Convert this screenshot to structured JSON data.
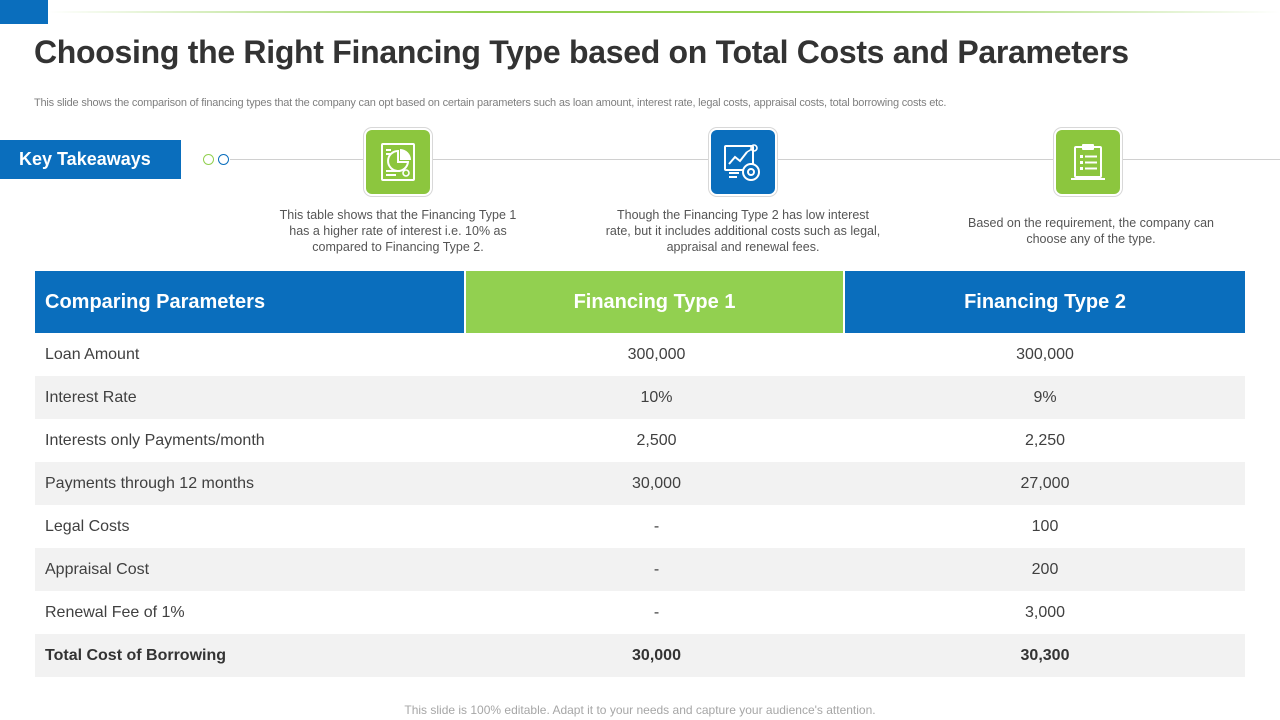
{
  "slide": {
    "title": "Choosing the Right Financing Type based on Total Costs and Parameters",
    "subtitle": "This slide shows the comparison of financing types that the company can opt based on certain parameters such as loan amount, interest rate, legal costs, appraisal costs, total borrowing costs etc.",
    "footer": "This slide is 100% editable. Adapt it to your needs and capture your audience's attention."
  },
  "takeaways": {
    "label": "Key Takeaways",
    "items": [
      {
        "icon": "pie-chart-document-icon",
        "text": "This table shows that the Financing Type 1 has a higher rate of interest i.e. 10% as compared to Financing Type 2."
      },
      {
        "icon": "analytics-gear-icon",
        "text": "Though the Financing Type 2 has low interest rate, but it includes additional costs such as legal, appraisal and renewal fees."
      },
      {
        "icon": "clipboard-checklist-icon",
        "text": "Based on the requirement,  the company can choose any of the type."
      }
    ]
  },
  "table": {
    "headers": [
      "Comparing Parameters",
      "Financing Type 1",
      "Financing Type 2"
    ],
    "rows": [
      [
        "Loan Amount",
        "300,000",
        "300,000"
      ],
      [
        "Interest  Rate",
        "10%",
        "9%"
      ],
      [
        "Interests  only Payments/month",
        "2,500",
        "2,250"
      ],
      [
        "Payments through  12 months",
        "30,000",
        "27,000"
      ],
      [
        "Legal Costs",
        "-",
        "100"
      ],
      [
        "Appraisal Cost",
        "-",
        "200"
      ],
      [
        "Renewal Fee of 1%",
        "-",
        "3,000"
      ],
      [
        "Total Cost of Borrowing",
        "30,000",
        "30,300"
      ]
    ]
  },
  "colors": {
    "blue": "#0a6ebd",
    "green": "#92d050"
  }
}
